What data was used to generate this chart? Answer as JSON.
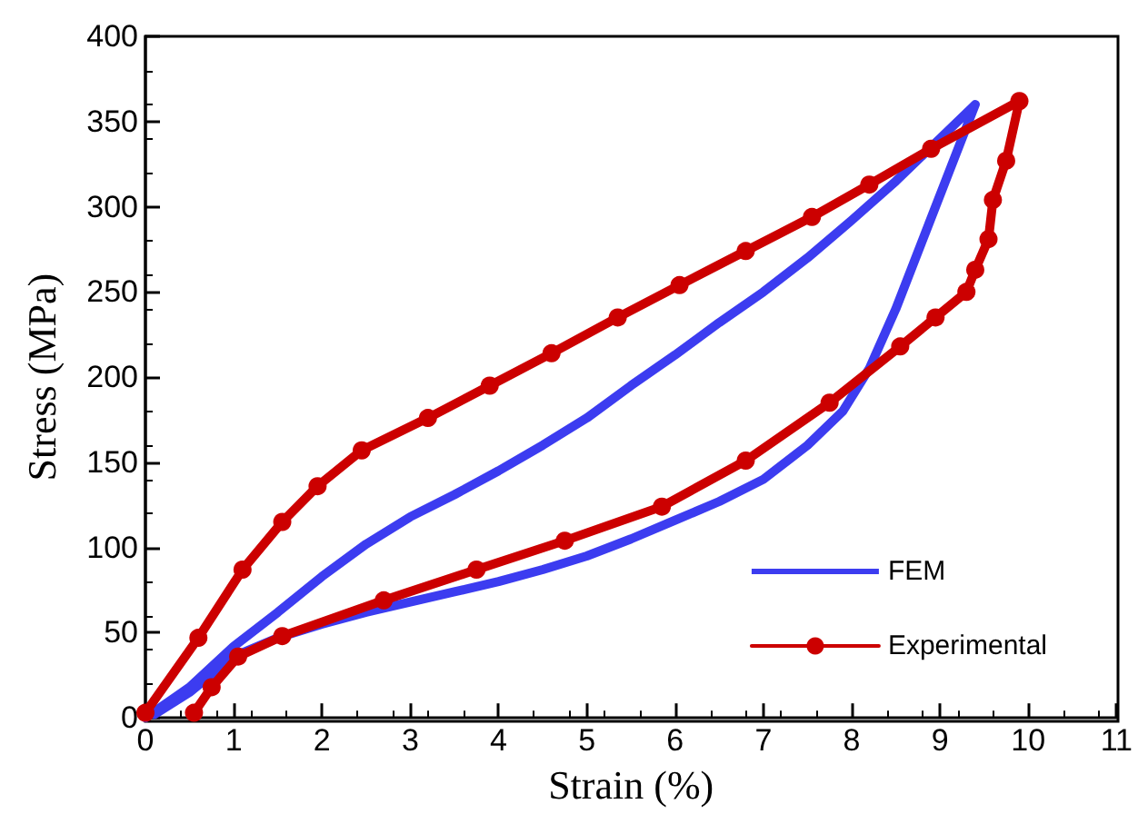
{
  "chart_data": {
    "type": "line",
    "xlabel": "Strain (%)",
    "ylabel": "Stress (MPa)",
    "xlim": [
      0,
      11
    ],
    "xticks": [
      0,
      1,
      2,
      3,
      4,
      5,
      6,
      7,
      8,
      9,
      10,
      11
    ],
    "ylim": [
      0,
      400
    ],
    "yticks": [
      0,
      50,
      100,
      150,
      200,
      250,
      300,
      350,
      400
    ],
    "grid": false,
    "legend": "bottom right",
    "line_style": "solid",
    "series": [
      {
        "name": "FEM",
        "color": "#3c3cf0",
        "marker": "none",
        "x": [
          0,
          0.5,
          1,
          1.5,
          2,
          2.5,
          3,
          3.5,
          4,
          4.5,
          5,
          5.5,
          6,
          6.5,
          7,
          7.5,
          8,
          8.5,
          9,
          9.4,
          9.1,
          8.8,
          8.5,
          8.2,
          7.9,
          7.5,
          7,
          6.5,
          6,
          5.5,
          5,
          4.5,
          4,
          3.5,
          3,
          2.5,
          2,
          1.5,
          1,
          0.5,
          0.1
        ],
        "values": [
          0,
          18,
          42,
          62,
          83,
          102,
          118,
          131,
          145,
          160,
          176,
          195,
          213,
          232,
          250,
          270,
          292,
          315,
          340,
          360,
          320,
          280,
          240,
          205,
          180,
          160,
          140,
          127,
          116,
          105,
          95,
          87,
          80,
          74,
          68,
          62,
          55,
          47,
          36,
          15,
          2
        ]
      },
      {
        "name": "Experimental",
        "color": "#cc0000",
        "marker": "circle",
        "x": [
          0,
          0.6,
          1.1,
          1.55,
          1.95,
          2.45,
          3.2,
          3.9,
          4.6,
          5.35,
          6.05,
          6.8,
          7.55,
          8.2,
          8.9,
          9.9,
          9.75,
          9.6,
          9.55,
          9.4,
          9.3,
          8.95,
          8.55,
          7.75,
          6.8,
          5.85,
          4.75,
          3.75,
          2.7,
          1.55,
          1.05,
          0.75,
          0.55
        ],
        "values": [
          3,
          47,
          87,
          115,
          136,
          157,
          176,
          195,
          214,
          235,
          254,
          274,
          294,
          313,
          334,
          362,
          327,
          304,
          281,
          263,
          250,
          235,
          218,
          185,
          151,
          124,
          104,
          87,
          69,
          48,
          36,
          18,
          3
        ]
      }
    ]
  }
}
